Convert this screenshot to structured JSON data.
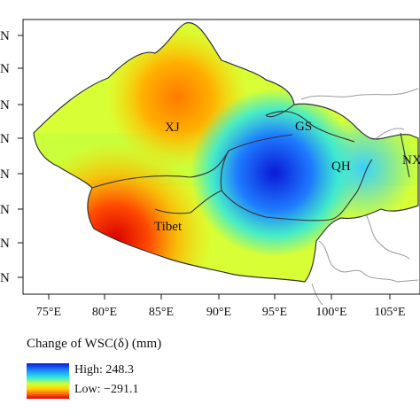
{
  "map": {
    "lat_labels": [
      "N",
      "N",
      "N",
      "N",
      "N",
      "N",
      "N",
      "N"
    ],
    "lon_labels": [
      "75°E",
      "80°E",
      "85°E",
      "90°E",
      "95°E",
      "100°E",
      "105°E"
    ],
    "regions": [
      "XJ",
      "GS",
      "QH",
      "Tibet",
      "NX"
    ]
  },
  "legend": {
    "title": "Change of WSC(δ) (mm)",
    "high_label": "High: 248.3",
    "low_label": "Low: −291.1",
    "colors": [
      "#0a1ad8",
      "#1e90ff",
      "#2ee8e0",
      "#cfff3a",
      "#ffd400",
      "#ff6a00",
      "#e00000"
    ]
  }
}
